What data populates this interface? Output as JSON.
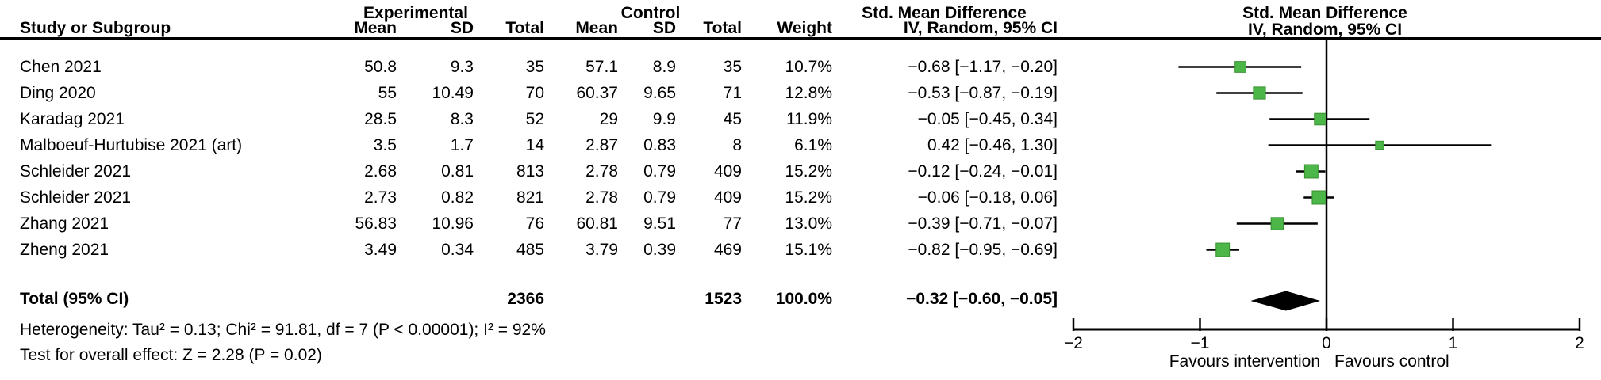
{
  "header": {
    "group_experimental": "Experimental",
    "group_control": "Control",
    "smd_text_col_line1": "Std. Mean Difference",
    "smd_plot_col_line1": "Std. Mean Difference",
    "study": "Study or Subgroup",
    "mean": "Mean",
    "sd": "SD",
    "total": "Total",
    "weight": "Weight",
    "smd_text_col_line2": "IV, Random, 95% CI",
    "smd_plot_col_line2": "IV, Random, 95% CI"
  },
  "rows": [
    {
      "study": "Chen 2021",
      "e_mean": "50.8",
      "e_sd": "9.3",
      "e_total": "35",
      "c_mean": "57.1",
      "c_sd": "8.9",
      "c_total": "35",
      "weight": "10.7%",
      "ci": "−0.68 [−1.17, −0.20]"
    },
    {
      "study": "Ding 2020",
      "e_mean": "55",
      "e_sd": "10.49",
      "e_total": "70",
      "c_mean": "60.37",
      "c_sd": "9.65",
      "c_total": "71",
      "weight": "12.8%",
      "ci": "−0.53 [−0.87, −0.19]"
    },
    {
      "study": "Karadag 2021",
      "e_mean": "28.5",
      "e_sd": "8.3",
      "e_total": "52",
      "c_mean": "29",
      "c_sd": "9.9",
      "c_total": "45",
      "weight": "11.9%",
      "ci": "−0.05 [−0.45, 0.34]"
    },
    {
      "study": "Malboeuf-Hurtubise 2021 (art)",
      "e_mean": "3.5",
      "e_sd": "1.7",
      "e_total": "14",
      "c_mean": "2.87",
      "c_sd": "0.83",
      "c_total": "8",
      "weight": "6.1%",
      "ci": "0.42 [−0.46, 1.30]"
    },
    {
      "study": "Schleider 2021",
      "e_mean": "2.68",
      "e_sd": "0.81",
      "e_total": "813",
      "c_mean": "2.78",
      "c_sd": "0.79",
      "c_total": "409",
      "weight": "15.2%",
      "ci": "−0.12 [−0.24, −0.01]"
    },
    {
      "study": "Schleider 2021",
      "e_mean": "2.73",
      "e_sd": "0.82",
      "e_total": "821",
      "c_mean": "2.78",
      "c_sd": "0.79",
      "c_total": "409",
      "weight": "15.2%",
      "ci": "−0.06 [−0.18, 0.06]"
    },
    {
      "study": "Zhang 2021",
      "e_mean": "56.83",
      "e_sd": "10.96",
      "e_total": "76",
      "c_mean": "60.81",
      "c_sd": "9.51",
      "c_total": "77",
      "weight": "13.0%",
      "ci": "−0.39 [−0.71, −0.07]"
    },
    {
      "study": "Zheng 2021",
      "e_mean": "3.49",
      "e_sd": "0.34",
      "e_total": "485",
      "c_mean": "3.79",
      "c_sd": "0.39",
      "c_total": "469",
      "weight": "15.1%",
      "ci": "−0.82 [−0.95, −0.69]"
    }
  ],
  "total_row": {
    "label": "Total (95% CI)",
    "e_total": "2366",
    "c_total": "1523",
    "weight": "100.0%",
    "ci": "−0.32 [−0.60, −0.05]"
  },
  "footer": {
    "heterogeneity": "Heterogeneity: Tau² = 0.13; Chi² = 91.81, df = 7 (P < 0.00001); I² = 92%",
    "overall": "Test for overall effect: Z = 2.28 (P = 0.02)"
  },
  "chart_data": {
    "type": "forest",
    "effect_measure": "Std. Mean Difference, IV, Random, 95% CI",
    "x_axis": {
      "min": -2,
      "max": 2,
      "ticks": [
        -2,
        -1,
        0,
        1,
        2
      ],
      "tick_labels": [
        "−2",
        "−1",
        "0",
        "1",
        "2"
      ],
      "label_left": "Favours intervention",
      "label_right": "Favours control",
      "zero_line": true
    },
    "studies": [
      {
        "name": "Chen 2021",
        "est": -0.68,
        "lo": -1.17,
        "hi": -0.2,
        "weight_pct": 10.7
      },
      {
        "name": "Ding 2020",
        "est": -0.53,
        "lo": -0.87,
        "hi": -0.19,
        "weight_pct": 12.8
      },
      {
        "name": "Karadag 2021",
        "est": -0.05,
        "lo": -0.45,
        "hi": 0.34,
        "weight_pct": 11.9
      },
      {
        "name": "Malboeuf-Hurtubise 2021 (art)",
        "est": 0.42,
        "lo": -0.46,
        "hi": 1.3,
        "weight_pct": 6.1
      },
      {
        "name": "Schleider 2021",
        "est": -0.12,
        "lo": -0.24,
        "hi": -0.01,
        "weight_pct": 15.2
      },
      {
        "name": "Schleider 2021",
        "est": -0.06,
        "lo": -0.18,
        "hi": 0.06,
        "weight_pct": 15.2
      },
      {
        "name": "Zhang 2021",
        "est": -0.39,
        "lo": -0.71,
        "hi": -0.07,
        "weight_pct": 13.0
      },
      {
        "name": "Zheng 2021",
        "est": -0.82,
        "lo": -0.95,
        "hi": -0.69,
        "weight_pct": 15.1
      }
    ],
    "total": {
      "label": "Total (95% CI)",
      "est": -0.32,
      "lo": -0.6,
      "hi": -0.05,
      "weight_pct": 100.0
    },
    "marker_color": "#4cb748",
    "marker_border_color": "#38912f",
    "line_color": "#000000",
    "diamond_color": "#000000"
  }
}
